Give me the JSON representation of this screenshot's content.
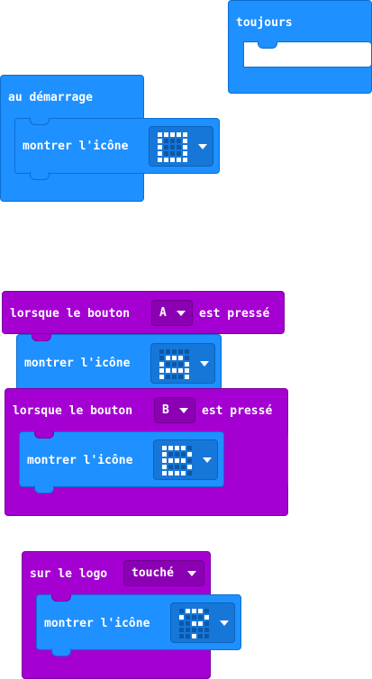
{
  "blocks": {
    "toujours": {
      "label": "toujours"
    },
    "au_demarrage": {
      "label": "au démarrage",
      "action": "montrer l'icône"
    },
    "bouton_a": {
      "prefix": "lorsque le bouton",
      "button": "A",
      "suffix": "est pressé",
      "action": "montrer l'icône"
    },
    "bouton_b": {
      "prefix": "lorsque le bouton",
      "button": "B",
      "suffix": "est pressé",
      "action": "montrer l'icône"
    },
    "logo": {
      "prefix": "sur le logo",
      "state": "touché",
      "action": "montrer l'icône"
    }
  },
  "icons": {
    "square": [
      [
        1,
        1,
        1,
        1,
        1
      ],
      [
        1,
        0,
        0,
        0,
        1
      ],
      [
        1,
        0,
        0,
        0,
        1
      ],
      [
        1,
        0,
        0,
        0,
        1
      ],
      [
        1,
        1,
        1,
        1,
        1
      ]
    ],
    "icon_a": [
      [
        0,
        0,
        0,
        0,
        0
      ],
      [
        0,
        1,
        1,
        1,
        0
      ],
      [
        1,
        0,
        0,
        0,
        1
      ],
      [
        1,
        1,
        1,
        1,
        1
      ],
      [
        1,
        0,
        0,
        0,
        1
      ]
    ],
    "icon_b": [
      [
        1,
        1,
        1,
        1,
        0
      ],
      [
        1,
        0,
        0,
        0,
        1
      ],
      [
        1,
        1,
        1,
        1,
        0
      ],
      [
        1,
        0,
        0,
        0,
        1
      ],
      [
        1,
        1,
        1,
        1,
        0
      ]
    ],
    "icon_logo": [
      [
        0,
        1,
        1,
        1,
        0
      ],
      [
        1,
        0,
        0,
        0,
        1
      ],
      [
        0,
        0,
        1,
        1,
        0
      ],
      [
        0,
        0,
        0,
        0,
        0
      ],
      [
        0,
        0,
        1,
        0,
        0
      ]
    ]
  },
  "colors": {
    "event_blue": "#1e90ff",
    "input_purple": "#a400d1",
    "background": "#ffffff"
  }
}
